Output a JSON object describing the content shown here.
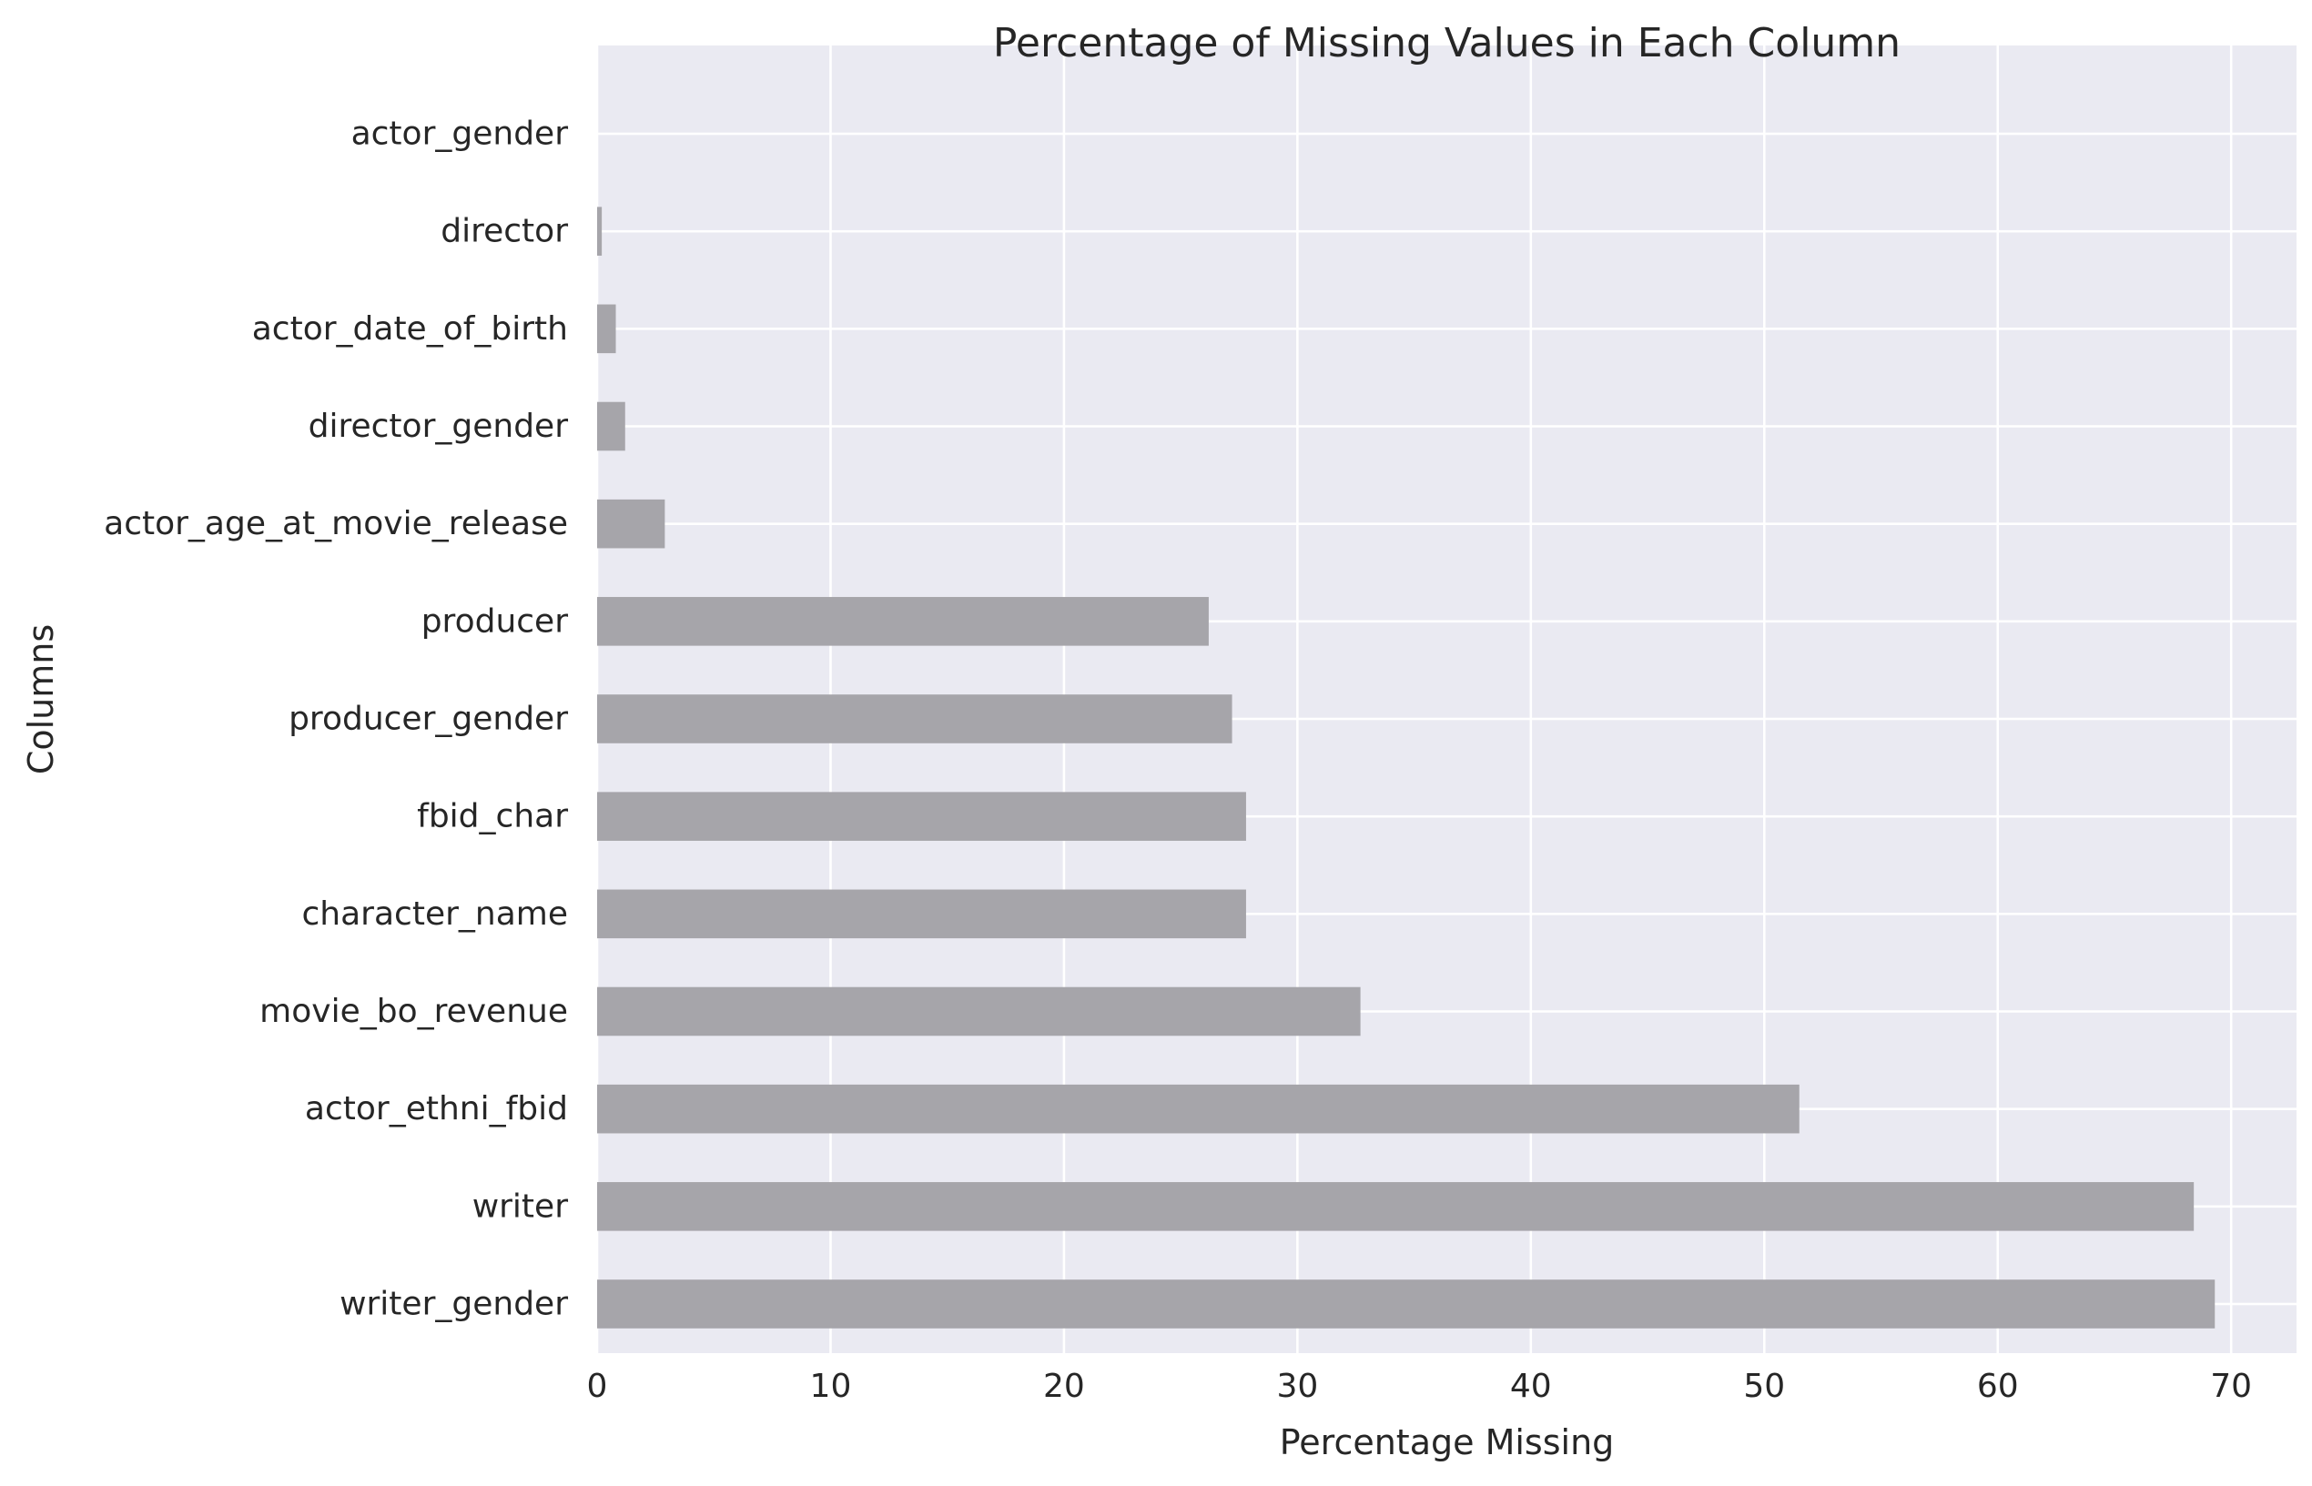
{
  "chart_data": {
    "type": "bar",
    "orientation": "horizontal",
    "title": "Percentage of Missing Values in Each Column",
    "xlabel": "Percentage Missing",
    "ylabel": "Columns",
    "categories": [
      "actor_gender",
      "director",
      "actor_date_of_birth",
      "director_gender",
      "actor_age_at_movie_release",
      "producer",
      "producer_gender",
      "fbid_char",
      "character_name",
      "movie_bo_revenue",
      "actor_ethni_fbid",
      "writer",
      "writer_gender"
    ],
    "values": [
      0.0,
      0.2,
      0.8,
      1.2,
      2.9,
      26.2,
      27.2,
      27.8,
      27.8,
      32.7,
      51.5,
      68.4,
      69.3
    ],
    "xlim": [
      0,
      72.8
    ],
    "xticks": [
      0,
      10,
      20,
      30,
      40,
      50,
      60,
      70
    ],
    "grid": true,
    "bar_color": "#a6a5aa",
    "background_color": "#eaeaf2"
  }
}
